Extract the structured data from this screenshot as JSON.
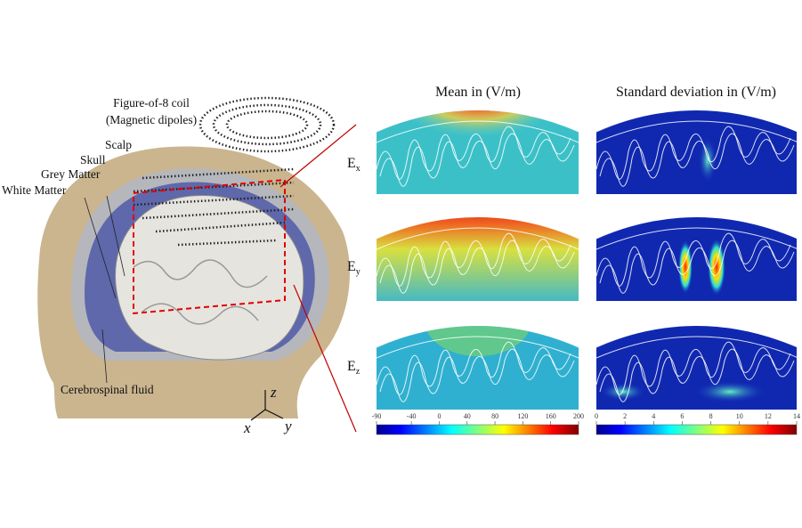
{
  "coil_label": [
    "Figure-of-8 coil",
    "(Magnetic dipoles)"
  ],
  "tissue_labels": {
    "scalp": "Scalp",
    "skull": "Skull",
    "grey_matter": "Grey Matter",
    "white_matter": "White Matter",
    "csf": "Cerebrospinal fluid"
  },
  "axes": {
    "x": "x",
    "y": "y",
    "z": "z"
  },
  "columns": [
    "Mean in (V/m)",
    "Standard deviation in (V/m)"
  ],
  "rows": [
    {
      "label": "E",
      "subscript": "x"
    },
    {
      "label": "E",
      "subscript": "y"
    },
    {
      "label": "E",
      "subscript": "z"
    }
  ],
  "colorbars": [
    {
      "lim": [
        -90,
        200
      ],
      "ticks": [
        -90,
        -40,
        0,
        40,
        80,
        120,
        160,
        200
      ]
    },
    {
      "lim": [
        0,
        14
      ],
      "ticks": [
        0,
        2,
        4,
        6,
        8,
        10,
        12,
        14
      ]
    }
  ]
}
